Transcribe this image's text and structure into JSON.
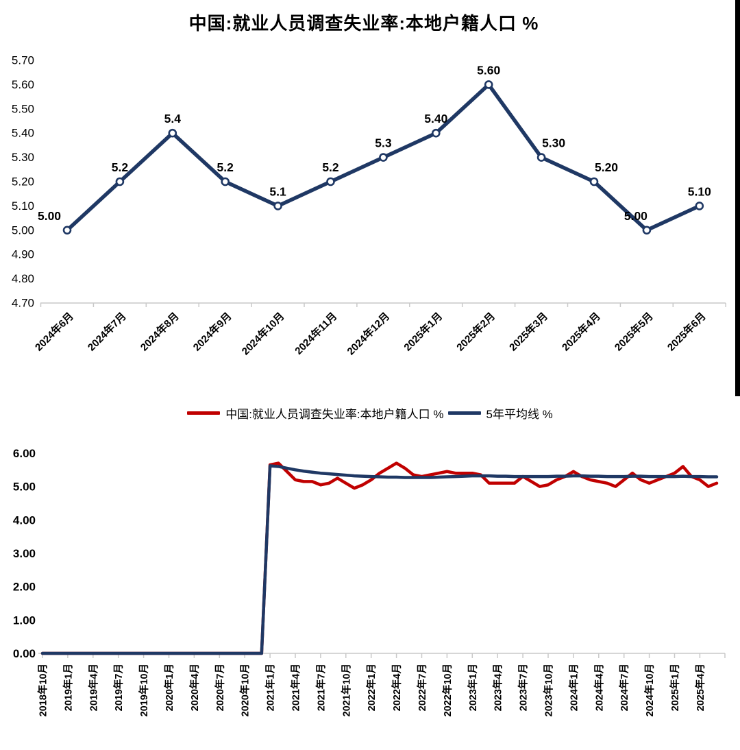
{
  "page": {
    "background": "#FFFFFF",
    "scan_bar_color": "#000000"
  },
  "colors": {
    "series_red": "#C00000",
    "series_navy": "#1F3864",
    "axis_gray": "#C9C9C9"
  },
  "chart_data": [
    {
      "type": "line",
      "title": "中国:就业人员调查失业率:本地户籍人口 %",
      "categories": [
        "2024年6月",
        "2024年7月",
        "2024年8月",
        "2024年9月",
        "2024年10月",
        "2024年11月",
        "2024年12月",
        "2025年1月",
        "2025年2月",
        "2025年3月",
        "2025年4月",
        "2025年5月",
        "2025年6月"
      ],
      "series": [
        {
          "name": "中国:就业人员调查失业率:本地户籍人口 %",
          "color": "#1F3864",
          "marker": "open-circle",
          "values": [
            5.0,
            5.2,
            5.4,
            5.2,
            5.1,
            5.2,
            5.3,
            5.4,
            5.6,
            5.3,
            5.2,
            5.0,
            5.1
          ],
          "point_labels": [
            "5.00",
            "5.2",
            "5.4",
            "5.2",
            "5.1",
            "5.2",
            "5.3",
            "5.40",
            "5.60",
            "5.30",
            "5.20",
            "5.00",
            "5.10"
          ]
        }
      ],
      "xlabel": "",
      "ylabel": "",
      "ylim": [
        4.7,
        5.7
      ],
      "yticks": [
        "5.70",
        "5.60",
        "5.50",
        "5.40",
        "5.30",
        "5.20",
        "5.10",
        "5.00",
        "4.90",
        "4.80",
        "4.70"
      ],
      "grid": false,
      "legend_position": "none",
      "x_label_rotation": -45
    },
    {
      "type": "line",
      "title": "",
      "x_interval": "monthly",
      "x_range": "2018年10月 – 2025年6月",
      "x_tick_labels": [
        "2018年10月",
        "2019年1月",
        "2019年4月",
        "2019年7月",
        "2019年10月",
        "2020年1月",
        "2020年4月",
        "2020年7月",
        "2020年10月",
        "2021年1月",
        "2021年4月",
        "2021年7月",
        "2021年10月",
        "2022年1月",
        "2022年4月",
        "2022年7月",
        "2022年10月",
        "2023年1月",
        "2023年4月",
        "2023年7月",
        "2023年10月",
        "2024年1月",
        "2024年4月",
        "2024年7月",
        "2024年10月",
        "2025年1月",
        "2025年4月"
      ],
      "series": [
        {
          "name": "中国:就业人员调查失业率:本地户籍人口 %",
          "color": "#C00000",
          "values": [
            0,
            0,
            0,
            0,
            0,
            0,
            0,
            0,
            0,
            0,
            0,
            0,
            0,
            0,
            0,
            0,
            0,
            0,
            0,
            0,
            0,
            0,
            0,
            0,
            0,
            0,
            0,
            5.65,
            5.7,
            5.45,
            5.2,
            5.15,
            5.15,
            5.05,
            5.1,
            5.25,
            5.1,
            4.95,
            5.05,
            5.2,
            5.4,
            5.55,
            5.7,
            5.55,
            5.35,
            5.3,
            5.35,
            5.4,
            5.45,
            5.4,
            5.4,
            5.4,
            5.35,
            5.1,
            5.1,
            5.1,
            5.1,
            5.3,
            5.15,
            5.0,
            5.05,
            5.2,
            5.3,
            5.45,
            5.3,
            5.2,
            5.15,
            5.1,
            5.0,
            5.2,
            5.4,
            5.2,
            5.1,
            5.2,
            5.3,
            5.4,
            5.6,
            5.3,
            5.2,
            5.0,
            5.1
          ]
        },
        {
          "name": "5年平均线 %",
          "color": "#1F3864",
          "values": [
            0,
            0,
            0,
            0,
            0,
            0,
            0,
            0,
            0,
            0,
            0,
            0,
            0,
            0,
            0,
            0,
            0,
            0,
            0,
            0,
            0,
            0,
            0,
            0,
            0,
            0,
            0,
            5.62,
            5.6,
            5.55,
            5.5,
            5.46,
            5.43,
            5.4,
            5.38,
            5.36,
            5.34,
            5.32,
            5.31,
            5.3,
            5.29,
            5.28,
            5.28,
            5.27,
            5.27,
            5.27,
            5.27,
            5.28,
            5.29,
            5.3,
            5.31,
            5.32,
            5.32,
            5.32,
            5.31,
            5.31,
            5.3,
            5.3,
            5.3,
            5.3,
            5.3,
            5.31,
            5.31,
            5.32,
            5.32,
            5.31,
            5.31,
            5.3,
            5.3,
            5.3,
            5.31,
            5.31,
            5.3,
            5.3,
            5.3,
            5.3,
            5.31,
            5.3,
            5.3,
            5.29,
            5.29
          ]
        }
      ],
      "xlabel": "",
      "ylabel": "",
      "ylim": [
        0,
        6
      ],
      "yticks": [
        "6.00",
        "5.00",
        "4.00",
        "3.00",
        "2.00",
        "1.00",
        "0.00"
      ],
      "grid": false,
      "legend_position": "top",
      "x_label_rotation": -90
    }
  ]
}
